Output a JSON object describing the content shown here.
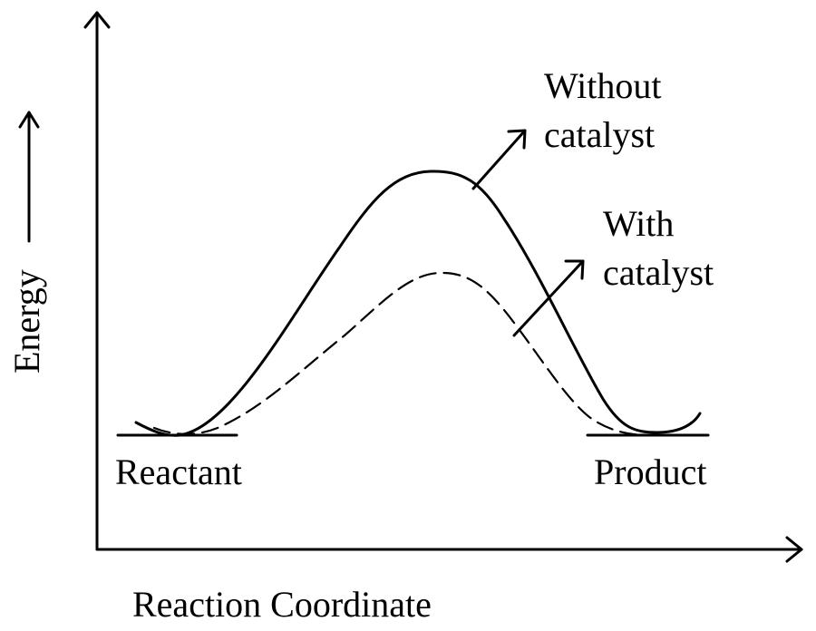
{
  "labels": {
    "y_axis": "Energy",
    "x_axis": "Reaction Coordinate",
    "reactant": "Reactant",
    "product": "Product",
    "without_catalyst_line1": "Without",
    "without_catalyst_line2": "catalyst",
    "with_catalyst_line1": "With",
    "with_catalyst_line2": "catalyst"
  },
  "colors": {
    "ink": "#000000",
    "background": "#ffffff"
  }
}
